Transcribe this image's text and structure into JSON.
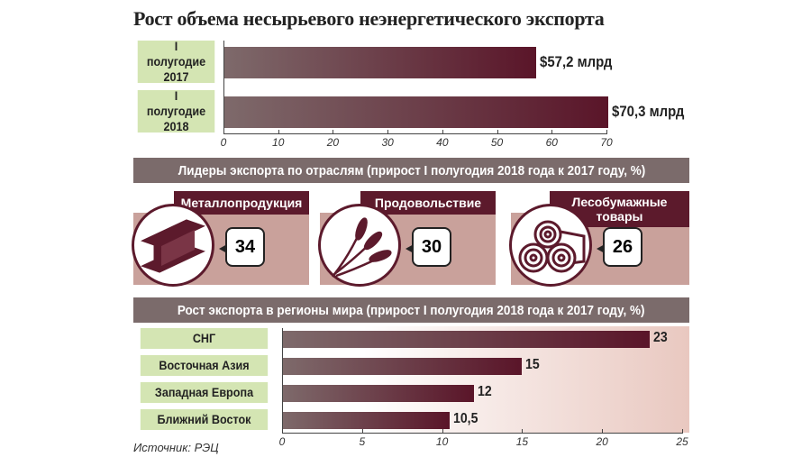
{
  "title": "Рост объема несырьевого неэнергетического экспорта",
  "chart_data": [
    {
      "type": "bar",
      "orientation": "horizontal",
      "categories": [
        "I полугодие 2017",
        "I полугодие 2018"
      ],
      "values": [
        57.2,
        70.3
      ],
      "data_labels": [
        "$57,2 млрд",
        "$70,3 млрд"
      ],
      "xlim": [
        0,
        70
      ],
      "ticks": [
        0,
        10,
        20,
        30,
        40,
        50,
        60,
        70
      ],
      "unit": "млрд $"
    },
    {
      "type": "table",
      "title": "Лидеры экспорта по отраслям (прирост I полугодия 2018 года к 2017 году, %)",
      "categories": [
        "Металлопродукция",
        "Продовольствие",
        "Лесобумажные товары"
      ],
      "values": [
        34,
        30,
        26
      ],
      "icons": [
        "steel-beam-icon",
        "wheat-icon",
        "logs-icon"
      ]
    },
    {
      "type": "bar",
      "orientation": "horizontal",
      "title": "Рост экспорта в регионы мира (прирост I полугодия 2018 года к 2017 году, %)",
      "categories": [
        "СНГ",
        "Восточная Азия",
        "Западная Европа",
        "Ближний Восток"
      ],
      "values": [
        23,
        15,
        12,
        10.5
      ],
      "data_labels": [
        "23",
        "15",
        "12",
        "10,5"
      ],
      "xlim": [
        0,
        25
      ],
      "ticks": [
        0,
        5,
        10,
        15,
        20,
        25
      ]
    }
  ],
  "source": "Источник: РЭЦ",
  "colors": {
    "bar_start": "#7e6a6b",
    "bar_end": "#5a1529",
    "label_bg": "#d4e5b3",
    "header_bg": "#7b6b6b",
    "accent": "#5c1a2c",
    "panel": "#c9a19b"
  }
}
